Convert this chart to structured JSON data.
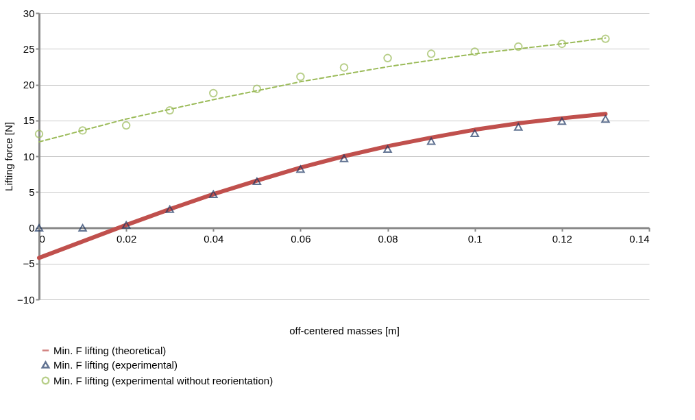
{
  "chart_data": {
    "type": "line",
    "xlabel": "off-centered masses [m]",
    "ylabel": "Lifting force [N]",
    "x": [
      0,
      0.01,
      0.02,
      0.03,
      0.04,
      0.05,
      0.06,
      0.07,
      0.08,
      0.09,
      0.1,
      0.11,
      0.12,
      0.13
    ],
    "series": [
      {
        "name": "Min. F lifting (theoretical)",
        "color": "#c0504d",
        "marker": "none",
        "line_style": "solid",
        "values": [
          -4.2,
          -1.9,
          0.4,
          2.6,
          4.7,
          6.6,
          8.4,
          10.0,
          11.4,
          12.6,
          13.7,
          14.6,
          15.3,
          15.9
        ]
      },
      {
        "name": "Min. F lifting (experimental)",
        "type": "scatter",
        "color": "#1f3864",
        "marker": "triangle",
        "values": [
          0,
          0,
          0.4,
          2.6,
          4.7,
          6.5,
          8.2,
          9.7,
          11.0,
          12.1,
          13.2,
          14.1,
          14.9,
          15.2
        ]
      },
      {
        "name": "Min. F lifting (experimental without reorientation)",
        "type": "scatter",
        "color": "#9bbb59",
        "marker": "circle",
        "values": [
          13.1,
          13.6,
          14.3,
          16.4,
          18.8,
          19.4,
          21.1,
          22.4,
          23.7,
          24.3,
          24.6,
          25.3,
          25.7,
          26.4
        ]
      },
      {
        "color": "#9bbb59",
        "marker": "none",
        "line_style": "dashed",
        "x": [
          0,
          0.02,
          0.04,
          0.06,
          0.08,
          0.1,
          0.12,
          0.13
        ],
        "values": [
          12.0,
          15.2,
          17.9,
          20.4,
          22.5,
          24.3,
          25.7,
          26.5
        ]
      }
    ],
    "xlim": [
      0,
      0.14
    ],
    "xticks": [
      0,
      0.02,
      0.04,
      0.06,
      0.08,
      0.1,
      0.12,
      0.14
    ],
    "ylim": [
      -10,
      30
    ],
    "yticks": [
      -10,
      -5,
      0,
      5,
      10,
      15,
      20,
      25,
      30
    ],
    "grid": "y",
    "legend": "bottom"
  }
}
